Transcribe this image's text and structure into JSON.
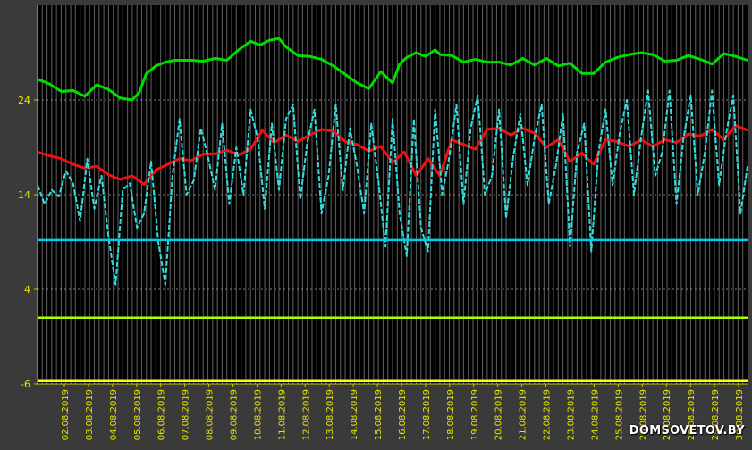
{
  "chart_data": {
    "type": "line",
    "title": "",
    "xlabel": "",
    "ylabel": "",
    "ylim": [
      -6,
      34
    ],
    "y_ticks": [
      "24",
      "14",
      "4",
      "-6"
    ],
    "y_tick_values": [
      24,
      14,
      4,
      -6
    ],
    "categories": [
      "02.08.2019",
      "03.08.2019",
      "04.08.2019",
      "05.08.2019",
      "06.08.2019",
      "07.08.2019",
      "08.08.2019",
      "09.08.2019",
      "10.08.2019",
      "11.08.2019",
      "12.08.2019",
      "13.08.2019",
      "14.08.2019",
      "15.08.2019",
      "16.08.2019",
      "17.08.2019",
      "18.08.2019",
      "19.08.2019",
      "20.08.2019",
      "21.08.2019",
      "22.08.2019",
      "23.08.2019",
      "24.08.2019",
      "25.08.2019",
      "26.08.2019",
      "27.08.2019",
      "28.08.2019",
      "29.08.2019",
      "30.08.2019"
    ],
    "x_start": 1.0,
    "x_end": 31.0,
    "grid": true,
    "series": [
      {
        "color": "#00dd00",
        "x": [
          1.0,
          1.5,
          2.0,
          2.5,
          3.0,
          3.5,
          4.0,
          4.5,
          5.0,
          5.3,
          5.6,
          6.0,
          6.4,
          6.8,
          7.0,
          7.5,
          8.0,
          8.5,
          9.0,
          9.5,
          10.0,
          10.4,
          10.8,
          11.2,
          11.5,
          12.0,
          12.5,
          13.0,
          13.5,
          14.0,
          14.5,
          15.0,
          15.5,
          16.0,
          16.3,
          16.6,
          17.0,
          17.4,
          17.8,
          18.0,
          18.5,
          19.0,
          19.5,
          20.0,
          20.5,
          21.0,
          21.5,
          22.0,
          22.5,
          23.0,
          23.5,
          24.0,
          24.5,
          25.0,
          25.5,
          26.0,
          26.5,
          27.0,
          27.5,
          28.0,
          28.5,
          29.0,
          29.5,
          30.0,
          30.5,
          31.0
        ],
        "values": [
          26.2,
          25.7,
          24.9,
          25.0,
          24.4,
          25.6,
          25.1,
          24.2,
          24.0,
          24.8,
          26.8,
          27.6,
          28.0,
          28.2,
          28.2,
          28.2,
          28.1,
          28.4,
          28.2,
          29.3,
          30.2,
          29.8,
          30.3,
          30.5,
          29.6,
          28.7,
          28.6,
          28.3,
          27.6,
          26.7,
          25.8,
          25.2,
          27.0,
          25.8,
          27.8,
          28.5,
          29.0,
          28.6,
          29.3,
          28.8,
          28.7,
          28.0,
          28.3,
          28.0,
          28.0,
          27.7,
          28.4,
          27.7,
          28.4,
          27.6,
          27.9,
          26.8,
          26.8,
          28.0,
          28.5,
          28.8,
          29.0,
          28.8,
          28.1,
          28.2,
          28.7,
          28.3,
          27.8,
          28.9,
          28.6,
          28.2
        ]
      },
      {
        "color": "#ee1111",
        "x": [
          1.0,
          1.5,
          2.0,
          2.5,
          3.0,
          3.5,
          4.0,
          4.5,
          5.0,
          5.5,
          6.0,
          6.5,
          7.0,
          7.5,
          8.0,
          8.5,
          9.0,
          9.5,
          10.0,
          10.5,
          11.0,
          11.5,
          12.0,
          12.5,
          13.0,
          13.5,
          14.0,
          14.5,
          15.0,
          15.5,
          16.0,
          16.5,
          17.0,
          17.5,
          18.0,
          18.5,
          19.0,
          19.5,
          20.0,
          20.5,
          21.0,
          21.5,
          22.0,
          22.5,
          23.0,
          23.5,
          24.0,
          24.5,
          25.0,
          25.5,
          26.0,
          26.5,
          27.0,
          27.5,
          28.0,
          28.5,
          29.0,
          29.5,
          30.0,
          30.5,
          31.0
        ],
        "values": [
          18.5,
          18.1,
          17.8,
          17.2,
          16.8,
          17.0,
          16.1,
          15.6,
          16.0,
          15.1,
          16.6,
          17.2,
          17.8,
          17.6,
          18.3,
          18.3,
          18.7,
          18.2,
          18.8,
          20.8,
          19.5,
          20.3,
          19.6,
          20.3,
          20.9,
          20.7,
          19.6,
          19.3,
          18.6,
          19.1,
          17.4,
          18.5,
          16.0,
          17.8,
          16.0,
          19.8,
          19.3,
          18.8,
          20.9,
          21.0,
          20.3,
          21.0,
          20.5,
          19.0,
          19.8,
          17.5,
          18.4,
          17.2,
          19.8,
          19.6,
          19.1,
          19.8,
          19.1,
          19.8,
          19.5,
          20.4,
          20.2,
          20.9,
          19.8,
          21.3,
          20.8
        ]
      },
      {
        "color": "#33dddd",
        "x": [
          1.0,
          1.3,
          1.6,
          1.9,
          2.2,
          2.5,
          2.8,
          3.1,
          3.4,
          3.7,
          4.0,
          4.3,
          4.6,
          4.9,
          5.2,
          5.5,
          5.8,
          6.1,
          6.4,
          6.7,
          7.0,
          7.3,
          7.6,
          7.9,
          8.2,
          8.5,
          8.8,
          9.1,
          9.4,
          9.7,
          10.0,
          10.3,
          10.6,
          10.9,
          11.2,
          11.5,
          11.8,
          12.1,
          12.4,
          12.7,
          13.0,
          13.3,
          13.6,
          13.9,
          14.2,
          14.5,
          14.8,
          15.1,
          15.4,
          15.7,
          16.0,
          16.3,
          16.6,
          16.9,
          17.2,
          17.5,
          17.8,
          18.1,
          18.4,
          18.7,
          19.0,
          19.3,
          19.6,
          19.9,
          20.2,
          20.5,
          20.8,
          21.1,
          21.4,
          21.7,
          22.0,
          22.3,
          22.6,
          22.9,
          23.2,
          23.5,
          23.8,
          24.1,
          24.4,
          24.7,
          25.0,
          25.3,
          25.6,
          25.9,
          26.2,
          26.5,
          26.8,
          27.1,
          27.4,
          27.7,
          28.0,
          28.3,
          28.6,
          28.9,
          29.2,
          29.5,
          29.8,
          30.1,
          30.4,
          30.7,
          31.0
        ],
        "values": [
          15.0,
          13.0,
          14.5,
          13.8,
          16.5,
          15.2,
          11.2,
          17.8,
          12.5,
          16.0,
          9.5,
          4.5,
          14.5,
          15.2,
          10.5,
          12.0,
          17.5,
          9.0,
          4.5,
          16.0,
          22.0,
          14.0,
          15.5,
          21.0,
          18.0,
          14.5,
          21.5,
          13.0,
          19.0,
          14.0,
          23.0,
          20.0,
          12.5,
          21.5,
          14.5,
          22.0,
          23.5,
          13.5,
          19.5,
          23.0,
          12.0,
          16.0,
          23.5,
          14.5,
          21.0,
          17.0,
          12.0,
          21.5,
          15.5,
          8.5,
          22.0,
          12.0,
          7.5,
          22.0,
          10.5,
          8.0,
          23.0,
          14.0,
          18.0,
          23.5,
          13.0,
          21.0,
          24.5,
          14.0,
          16.0,
          23.0,
          11.5,
          18.0,
          22.5,
          15.0,
          20.0,
          23.5,
          13.0,
          17.0,
          22.5,
          8.5,
          18.5,
          21.5,
          8.0,
          18.5,
          23.0,
          15.0,
          20.5,
          24.0,
          14.0,
          20.0,
          25.0,
          16.0,
          18.5,
          25.0,
          13.0,
          20.0,
          24.5,
          14.0,
          18.5,
          25.0,
          15.0,
          20.5,
          24.5,
          12.0,
          17.0
        ]
      },
      {
        "color": "#00ccee",
        "x": [
          1.0,
          31.0
        ],
        "values": [
          9.2,
          9.2
        ]
      },
      {
        "color": "#aaff00",
        "x": [
          1.0,
          31.0
        ],
        "values": [
          1.0,
          1.0
        ]
      },
      {
        "color": "#ffff00",
        "x": [
          1.0,
          31.0
        ],
        "values": [
          -5.7,
          -5.7
        ]
      }
    ]
  },
  "watermark": "DOMSOVETOV.BY"
}
